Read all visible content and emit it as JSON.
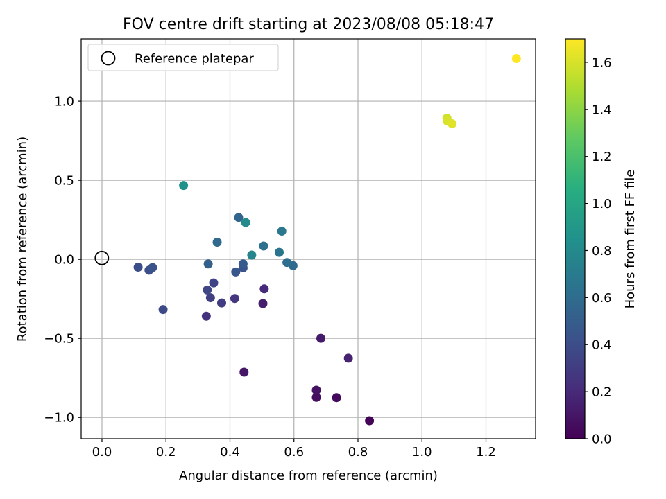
{
  "chart_data": {
    "type": "scatter",
    "title": "FOV centre drift starting at 2023/08/08 05:18:47",
    "xlabel": "Angular distance from reference (arcmin)",
    "ylabel": "Rotation from reference (arcmin)",
    "xlim": [
      -0.065,
      1.355
    ],
    "ylim": [
      -1.135,
      1.395
    ],
    "xticks": [
      0.0,
      0.2,
      0.4,
      0.6,
      0.8,
      1.0,
      1.2
    ],
    "xtick_labels": [
      "0.0",
      "0.2",
      "0.4",
      "0.6",
      "0.8",
      "1.0",
      "1.2"
    ],
    "yticks": [
      -1.0,
      -0.5,
      0.0,
      0.5,
      1.0
    ],
    "ytick_labels": [
      "−1.0",
      "−0.5",
      "0.0",
      "0.5",
      "1.0"
    ],
    "grid": true,
    "legend": {
      "position": "top-left",
      "entries": [
        {
          "label": "Reference platepar",
          "marker": "open-circle",
          "x": 0.0,
          "y": 0.0
        }
      ]
    },
    "colorbar": {
      "label": "Hours from first FF file",
      "colormap": "viridis",
      "range": [
        0.0,
        1.7
      ],
      "ticks": [
        0.0,
        0.2,
        0.4,
        0.6,
        0.8,
        1.0,
        1.2,
        1.4,
        1.6
      ],
      "tick_labels": [
        "0.0",
        "0.2",
        "0.4",
        "0.6",
        "0.8",
        "1.0",
        "1.2",
        "1.4",
        "1.6"
      ]
    },
    "points": [
      {
        "x": 0.836,
        "y": -1.021,
        "h": 0.02
      },
      {
        "x": 0.733,
        "y": -0.875,
        "h": 0.04
      },
      {
        "x": 0.67,
        "y": -0.873,
        "h": 0.06
      },
      {
        "x": 0.67,
        "y": -0.828,
        "h": 0.08
      },
      {
        "x": 0.444,
        "y": -0.714,
        "h": 0.1
      },
      {
        "x": 0.684,
        "y": -0.5,
        "h": 0.12
      },
      {
        "x": 0.503,
        "y": -0.28,
        "h": 0.14
      },
      {
        "x": 0.77,
        "y": -0.626,
        "h": 0.16
      },
      {
        "x": 0.507,
        "y": -0.187,
        "h": 0.2
      },
      {
        "x": 0.326,
        "y": -0.36,
        "h": 0.24
      },
      {
        "x": 0.415,
        "y": -0.248,
        "h": 0.27
      },
      {
        "x": 0.374,
        "y": -0.276,
        "h": 0.3
      },
      {
        "x": 0.339,
        "y": -0.243,
        "h": 0.32
      },
      {
        "x": 0.349,
        "y": -0.149,
        "h": 0.34
      },
      {
        "x": 0.329,
        "y": -0.194,
        "h": 0.36
      },
      {
        "x": 0.191,
        "y": -0.318,
        "h": 0.38
      },
      {
        "x": 0.113,
        "y": -0.05,
        "h": 0.4
      },
      {
        "x": 0.147,
        "y": -0.069,
        "h": 0.41
      },
      {
        "x": 0.158,
        "y": -0.052,
        "h": 0.43
      },
      {
        "x": 0.441,
        "y": -0.054,
        "h": 0.44
      },
      {
        "x": 0.418,
        "y": -0.08,
        "h": 0.46
      },
      {
        "x": 0.441,
        "y": -0.029,
        "h": 0.48
      },
      {
        "x": 0.332,
        "y": -0.029,
        "h": 0.52
      },
      {
        "x": 0.427,
        "y": 0.265,
        "h": 0.55
      },
      {
        "x": 0.36,
        "y": 0.108,
        "h": 0.58
      },
      {
        "x": 0.597,
        "y": -0.04,
        "h": 0.59
      },
      {
        "x": 0.578,
        "y": -0.02,
        "h": 0.61
      },
      {
        "x": 0.505,
        "y": 0.084,
        "h": 0.63
      },
      {
        "x": 0.554,
        "y": 0.044,
        "h": 0.65
      },
      {
        "x": 0.562,
        "y": 0.178,
        "h": 0.67
      },
      {
        "x": 0.468,
        "y": 0.027,
        "h": 0.76
      },
      {
        "x": 0.449,
        "y": 0.233,
        "h": 0.8
      },
      {
        "x": 0.255,
        "y": 0.467,
        "h": 0.85
      },
      {
        "x": 1.078,
        "y": 0.893,
        "h": 1.58
      },
      {
        "x": 1.079,
        "y": 0.875,
        "h": 1.6
      },
      {
        "x": 1.094,
        "y": 0.858,
        "h": 1.62
      },
      {
        "x": 1.295,
        "y": 1.27,
        "h": 1.7
      }
    ]
  }
}
